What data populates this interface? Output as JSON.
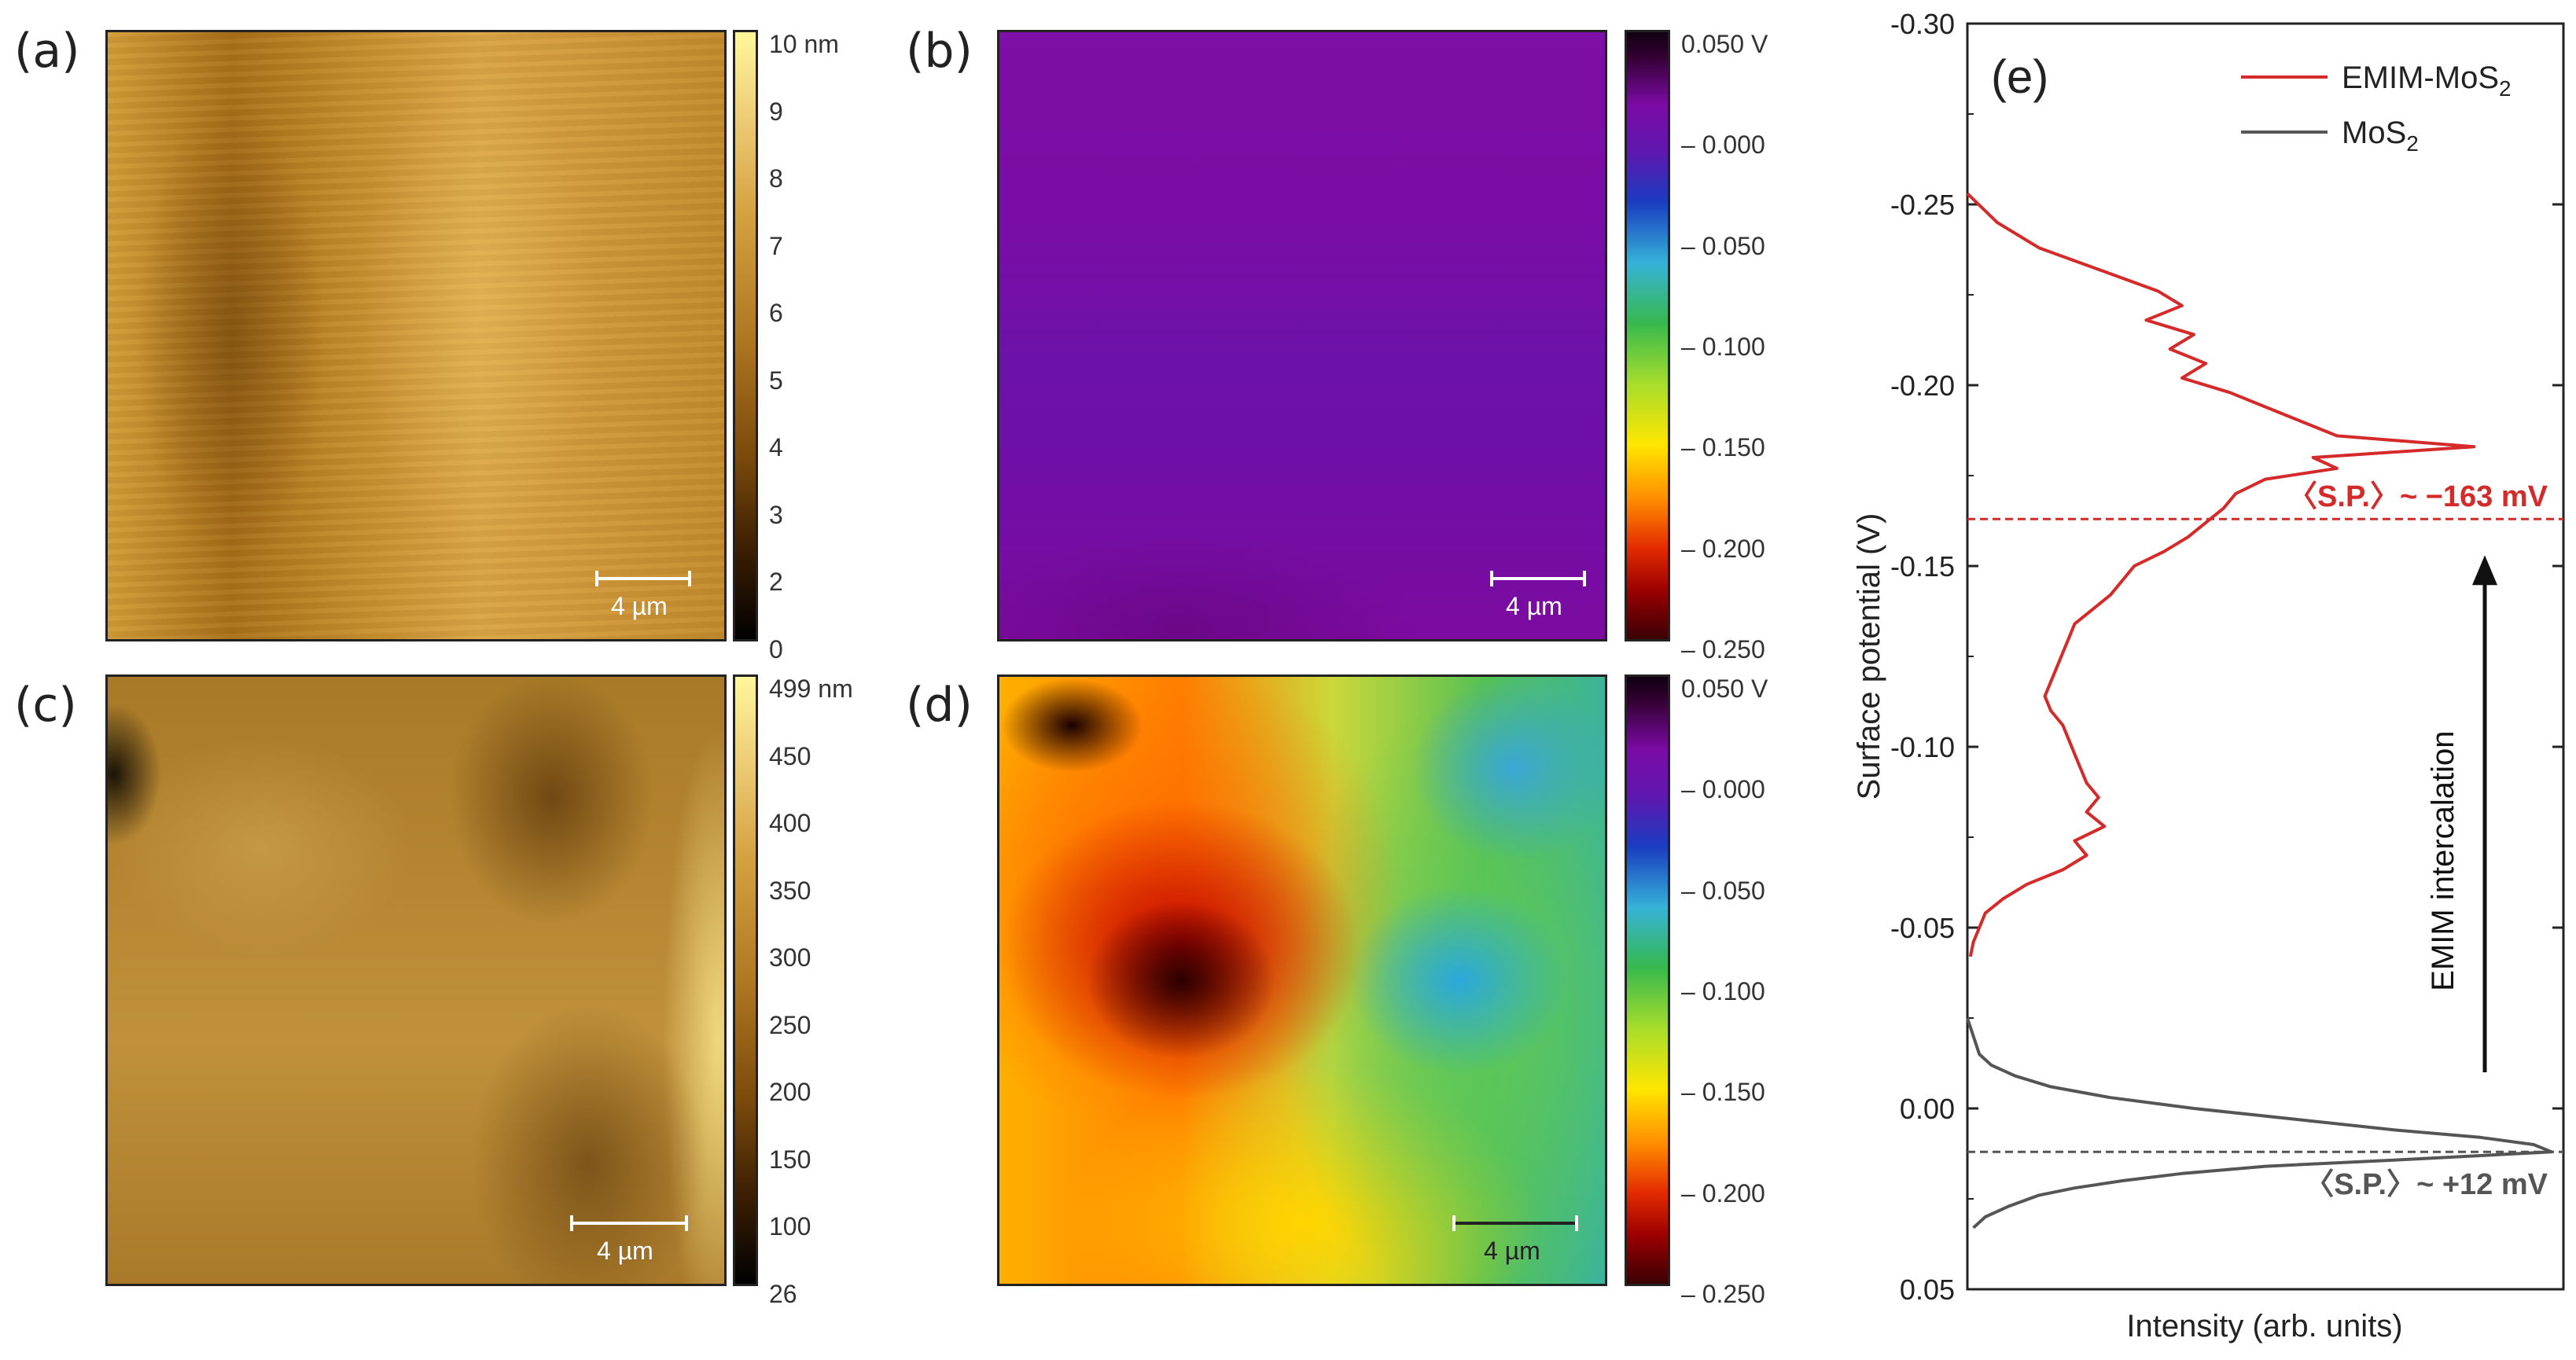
{
  "panels": {
    "a": {
      "label": "(a)",
      "colorbar_ticks": [
        "10 nm",
        "9",
        "8",
        "7",
        "6",
        "5",
        "4",
        "3",
        "2",
        "0"
      ],
      "scalebar": "4 µm"
    },
    "b": {
      "label": "(b)",
      "colorbar_ticks": [
        "0.050 V",
        "– 0.000",
        "– 0.050",
        "– 0.100",
        "– 0.150",
        "– 0.200",
        "– 0.250"
      ],
      "scalebar": "4 µm"
    },
    "c": {
      "label": "(c)",
      "colorbar_ticks": [
        "499 nm",
        "450",
        "400",
        "350",
        "300",
        "250",
        "200",
        "150",
        "100",
        "26"
      ],
      "scalebar": "4 µm"
    },
    "d": {
      "label": "(d)",
      "colorbar_ticks": [
        "0.050 V",
        "– 0.000",
        "– 0.050",
        "– 0.100",
        "– 0.150",
        "– 0.200",
        "– 0.250"
      ],
      "scalebar": "4 µm"
    },
    "e": {
      "label": "(e)"
    }
  },
  "colors": {
    "red": "#d42a2a",
    "gray": "#555555",
    "afm_dark": "#000000",
    "afm_light": "#fff79a"
  },
  "chart_data": {
    "type": "line",
    "xlabel": "Intensity (arb. units)",
    "ylabel": "Surface potential (V)",
    "ylim": [
      0.05,
      -0.3
    ],
    "yticks": [
      "-0.30",
      "-0.25",
      "-0.20",
      "-0.15",
      "-0.10",
      "-0.05",
      "0.00",
      "0.05"
    ],
    "ytick_values": [
      -0.3,
      -0.25,
      -0.2,
      -0.15,
      -0.1,
      -0.05,
      0.0,
      0.05
    ],
    "legend": {
      "position": "top-right"
    },
    "series": [
      {
        "name": "EMIM-MoS",
        "name_sub": "2",
        "color": "#d42a2a",
        "y": [
          -0.253,
          -0.245,
          -0.238,
          -0.232,
          -0.226,
          -0.222,
          -0.218,
          -0.214,
          -0.21,
          -0.206,
          -0.202,
          -0.198,
          -0.194,
          -0.19,
          -0.186,
          -0.183,
          -0.18,
          -0.177,
          -0.174,
          -0.17,
          -0.166,
          -0.162,
          -0.158,
          -0.154,
          -0.15,
          -0.146,
          -0.142,
          -0.138,
          -0.134,
          -0.13,
          -0.126,
          -0.122,
          -0.118,
          -0.114,
          -0.11,
          -0.106,
          -0.102,
          -0.098,
          -0.094,
          -0.09,
          -0.086,
          -0.082,
          -0.078,
          -0.074,
          -0.07,
          -0.066,
          -0.062,
          -0.058,
          -0.054,
          -0.05,
          -0.046,
          -0.042
        ],
        "x": [
          0,
          0.05,
          0.12,
          0.22,
          0.32,
          0.36,
          0.3,
          0.38,
          0.34,
          0.4,
          0.36,
          0.44,
          0.5,
          0.56,
          0.62,
          0.85,
          0.58,
          0.62,
          0.5,
          0.45,
          0.43,
          0.4,
          0.37,
          0.33,
          0.28,
          0.26,
          0.24,
          0.21,
          0.18,
          0.17,
          0.16,
          0.15,
          0.14,
          0.13,
          0.14,
          0.16,
          0.17,
          0.18,
          0.19,
          0.2,
          0.22,
          0.2,
          0.23,
          0.18,
          0.2,
          0.16,
          0.1,
          0.06,
          0.03,
          0.02,
          0.01,
          0.005
        ]
      },
      {
        "name": "MoS",
        "name_sub": "2",
        "color": "#555555",
        "y": [
          -0.025,
          -0.02,
          -0.015,
          -0.012,
          -0.009,
          -0.006,
          -0.003,
          0.0,
          0.003,
          0.006,
          0.008,
          0.01,
          0.012,
          0.014,
          0.016,
          0.018,
          0.02,
          0.022,
          0.024,
          0.027,
          0.03,
          0.033
        ],
        "x": [
          0,
          0.01,
          0.02,
          0.04,
          0.08,
          0.14,
          0.24,
          0.38,
          0.55,
          0.72,
          0.86,
          0.95,
          0.98,
          0.75,
          0.5,
          0.36,
          0.26,
          0.18,
          0.12,
          0.07,
          0.03,
          0.01
        ]
      }
    ],
    "annotations": [
      {
        "text": "〈S.P.〉~ −163 mV",
        "y": -0.163,
        "color": "#d42a2a"
      },
      {
        "text": "〈S.P.〉~ +12 mV",
        "y": 0.012,
        "color": "#555555"
      },
      {
        "text": "EMIM intercalation",
        "arrow_from": -0.01,
        "arrow_to": -0.153
      }
    ]
  }
}
